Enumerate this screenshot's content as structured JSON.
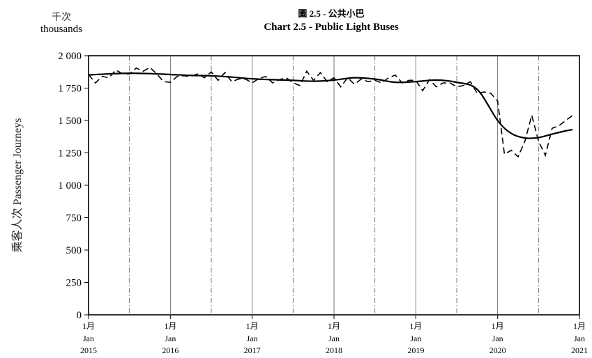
{
  "header": {
    "unit_zh": "千次",
    "unit_en": "thousands",
    "title_zh": "圖 2.5 - 公共小巴",
    "title_en": "Chart 2.5 - Public Light Buses"
  },
  "chart_data": {
    "type": "line",
    "ylabel": "乘客人次 Passenger Journeys",
    "ylim": [
      0,
      2000
    ],
    "yticks": [
      "0",
      "250",
      "500",
      "750",
      "1 000",
      "1 250",
      "1 500",
      "1 750",
      "2 000"
    ],
    "ytick_values": [
      0,
      250,
      500,
      750,
      1000,
      1250,
      1500,
      1750,
      2000
    ],
    "xlim": [
      "2015-01",
      "2021-01"
    ],
    "xticks": [
      {
        "value": "2015-01",
        "zh": "1月",
        "mon": "Jan",
        "year": "2015"
      },
      {
        "value": "2016-01",
        "zh": "1月",
        "mon": "Jan",
        "year": "2016"
      },
      {
        "value": "2017-01",
        "zh": "1月",
        "mon": "Jan",
        "year": "2017"
      },
      {
        "value": "2018-01",
        "zh": "1月",
        "mon": "Jan",
        "year": "2018"
      },
      {
        "value": "2019-01",
        "zh": "1月",
        "mon": "Jan",
        "year": "2019"
      },
      {
        "value": "2020-01",
        "zh": "1月",
        "mon": "Jan",
        "year": "2020"
      },
      {
        "value": "2021-01",
        "zh": "1月",
        "mon": "Jan",
        "year": "2021"
      }
    ],
    "solid_gridlines_at": [
      "2015-01",
      "2016-01",
      "2017-01",
      "2018-01",
      "2019-01",
      "2020-01"
    ],
    "dashdot_gridlines_at": [
      "2015-07",
      "2016-07",
      "2017-07",
      "2018-07",
      "2019-07",
      "2020-07"
    ],
    "series": [
      {
        "style": "dashed",
        "x": [
          "2015-01",
          "2015-02",
          "2015-03",
          "2015-04",
          "2015-05",
          "2015-06",
          "2015-07",
          "2015-08",
          "2015-09",
          "2015-10",
          "2015-11",
          "2015-12",
          "2016-01",
          "2016-02",
          "2016-03",
          "2016-04",
          "2016-05",
          "2016-06",
          "2016-07",
          "2016-08",
          "2016-09",
          "2016-10",
          "2016-11",
          "2016-12",
          "2017-01",
          "2017-02",
          "2017-03",
          "2017-04",
          "2017-05",
          "2017-06",
          "2017-07",
          "2017-08",
          "2017-09",
          "2017-10",
          "2017-11",
          "2017-12",
          "2018-01",
          "2018-02",
          "2018-03",
          "2018-04",
          "2018-05",
          "2018-06",
          "2018-07",
          "2018-08",
          "2018-09",
          "2018-10",
          "2018-11",
          "2018-12",
          "2019-01",
          "2019-02",
          "2019-03",
          "2019-04",
          "2019-05",
          "2019-06",
          "2019-07",
          "2019-08",
          "2019-09",
          "2019-10",
          "2019-11",
          "2019-12",
          "2020-01",
          "2020-02",
          "2020-03",
          "2020-04",
          "2020-05",
          "2020-06",
          "2020-07",
          "2020-08",
          "2020-09",
          "2020-10",
          "2020-11",
          "2020-12"
        ],
        "values": [
          1855,
          1790,
          1840,
          1830,
          1890,
          1860,
          1860,
          1905,
          1880,
          1910,
          1860,
          1800,
          1795,
          1840,
          1845,
          1840,
          1860,
          1830,
          1875,
          1810,
          1870,
          1800,
          1820,
          1820,
          1790,
          1825,
          1840,
          1790,
          1815,
          1830,
          1790,
          1770,
          1880,
          1810,
          1870,
          1800,
          1830,
          1760,
          1830,
          1780,
          1820,
          1800,
          1810,
          1790,
          1830,
          1850,
          1790,
          1810,
          1810,
          1730,
          1815,
          1760,
          1790,
          1790,
          1760,
          1770,
          1800,
          1710,
          1720,
          1710,
          1650,
          1240,
          1270,
          1220,
          1340,
          1540,
          1340,
          1230,
          1440,
          1460,
          1500,
          1540
        ]
      },
      {
        "style": "solid",
        "x": [
          "2015-01",
          "2015-04",
          "2015-07",
          "2015-10",
          "2016-01",
          "2016-04",
          "2016-07",
          "2016-10",
          "2017-01",
          "2017-04",
          "2017-07",
          "2017-10",
          "2018-01",
          "2018-04",
          "2018-07",
          "2018-10",
          "2019-01",
          "2019-04",
          "2019-07",
          "2019-10",
          "2020-01",
          "2020-03",
          "2020-05",
          "2020-07",
          "2020-09",
          "2020-11",
          "2020-12"
        ],
        "values": [
          1852,
          1860,
          1865,
          1862,
          1855,
          1848,
          1845,
          1835,
          1822,
          1815,
          1810,
          1803,
          1812,
          1830,
          1820,
          1795,
          1800,
          1812,
          1795,
          1740,
          1500,
          1400,
          1365,
          1368,
          1395,
          1420,
          1430
        ]
      }
    ]
  }
}
